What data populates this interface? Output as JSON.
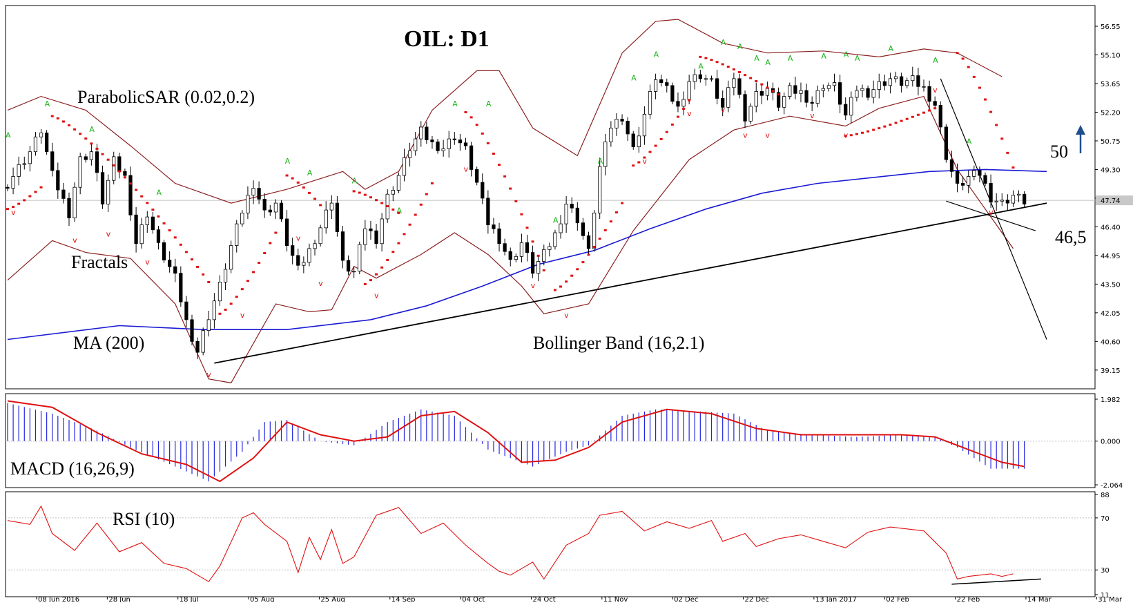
{
  "chart_data": {
    "type": "candlestick",
    "title": "OIL: D1",
    "symbol": "OIL",
    "timeframe": "D1",
    "x_labels": [
      "08 Jun 2016",
      "28 Jun",
      "18 Jul",
      "05 Aug",
      "25 Aug",
      "14 Sep",
      "04 Oct",
      "24 Oct",
      "11 Nov",
      "02 Dec",
      "22 Dec",
      "13 Jan 2017",
      "02 Feb",
      "22 Feb",
      "14 Mar",
      "31 Mar"
    ],
    "price_axis": {
      "ticks": [
        "56.55",
        "55.10",
        "53.65",
        "52.20",
        "50.75",
        "49.30",
        "47.85",
        "46.40",
        "44.95",
        "43.50",
        "42.05",
        "40.60",
        "39.15"
      ],
      "ylim": [
        38.2,
        57.6
      ],
      "current_price": "47.74"
    },
    "indicators": {
      "parabolic_sar": "ParabolicSAR (0.02,0.2)",
      "fractals": "Fractals",
      "ma": "MA (200)",
      "bollinger": "Bollinger Band (16,2.1)"
    },
    "annotations": {
      "target": "50",
      "support": "46,5"
    },
    "close_series": [
      [
        0,
        48.6
      ],
      [
        4,
        50.2
      ],
      [
        6,
        51.3
      ],
      [
        8,
        49.0
      ],
      [
        11,
        47.1
      ],
      [
        13,
        49.8
      ],
      [
        15,
        50.2
      ],
      [
        17,
        47.7
      ],
      [
        19,
        49.7
      ],
      [
        21,
        48.9
      ],
      [
        23,
        45.6
      ],
      [
        25,
        47.1
      ],
      [
        27,
        45.4
      ],
      [
        30,
        43.8
      ],
      [
        32,
        41.6
      ],
      [
        34,
        40.1
      ],
      [
        36,
        41.9
      ],
      [
        38,
        43.4
      ],
      [
        40,
        45.4
      ],
      [
        42,
        47.2
      ],
      [
        44,
        48.6
      ],
      [
        46,
        47.1
      ],
      [
        48,
        47.6
      ],
      [
        50,
        45.6
      ],
      [
        52,
        44.2
      ],
      [
        54,
        45.2
      ],
      [
        56,
        46.4
      ],
      [
        58,
        47.8
      ],
      [
        60,
        44.5
      ],
      [
        62,
        44.1
      ],
      [
        64,
        46.4
      ],
      [
        66,
        45.8
      ],
      [
        68,
        47.9
      ],
      [
        70,
        49.0
      ],
      [
        72,
        50.4
      ],
      [
        74,
        51.2
      ],
      [
        76,
        50.6
      ],
      [
        78,
        50.4
      ],
      [
        80,
        51.0
      ],
      [
        82,
        50.3
      ],
      [
        84,
        48.6
      ],
      [
        86,
        46.6
      ],
      [
        88,
        45.8
      ],
      [
        90,
        44.6
      ],
      [
        92,
        45.6
      ],
      [
        94,
        44.2
      ],
      [
        96,
        45.0
      ],
      [
        98,
        46.0
      ],
      [
        100,
        47.6
      ],
      [
        102,
        46.8
      ],
      [
        104,
        45.1
      ],
      [
        106,
        49.4
      ],
      [
        108,
        51.5
      ],
      [
        110,
        52.0
      ],
      [
        112,
        50.3
      ],
      [
        114,
        52.1
      ],
      [
        116,
        54.0
      ],
      [
        118,
        53.3
      ],
      [
        120,
        52.4
      ],
      [
        122,
        53.8
      ],
      [
        124,
        54.1
      ],
      [
        126,
        53.7
      ],
      [
        128,
        52.4
      ],
      [
        130,
        54.0
      ],
      [
        132,
        52.0
      ],
      [
        134,
        53.1
      ],
      [
        136,
        53.4
      ],
      [
        138,
        52.6
      ],
      [
        140,
        53.3
      ],
      [
        142,
        53.2
      ],
      [
        144,
        52.7
      ],
      [
        146,
        53.6
      ],
      [
        148,
        53.5
      ],
      [
        150,
        52.0
      ],
      [
        152,
        53.4
      ],
      [
        154,
        53.2
      ],
      [
        156,
        53.6
      ],
      [
        158,
        53.9
      ],
      [
        160,
        53.7
      ],
      [
        162,
        53.8
      ],
      [
        164,
        53.4
      ],
      [
        166,
        52.6
      ],
      [
        168,
        50.0
      ],
      [
        170,
        48.4
      ],
      [
        172,
        48.9
      ],
      [
        174,
        49.1
      ],
      [
        176,
        47.9
      ],
      [
        178,
        47.6
      ],
      [
        180,
        48.0
      ],
      [
        182,
        47.7
      ]
    ],
    "ma200": [
      [
        0,
        40.7
      ],
      [
        20,
        41.4
      ],
      [
        35,
        41.2
      ],
      [
        50,
        41.2
      ],
      [
        65,
        41.7
      ],
      [
        75,
        42.4
      ],
      [
        85,
        43.4
      ],
      [
        95,
        44.5
      ],
      [
        105,
        45.2
      ],
      [
        115,
        46.3
      ],
      [
        125,
        47.3
      ],
      [
        135,
        48.1
      ],
      [
        145,
        48.6
      ],
      [
        155,
        48.9
      ],
      [
        165,
        49.2
      ],
      [
        175,
        49.3
      ],
      [
        186,
        49.2
      ]
    ],
    "bollinger_upper": [
      [
        0,
        52.3
      ],
      [
        6,
        53.0
      ],
      [
        14,
        52.3
      ],
      [
        22,
        50.5
      ],
      [
        30,
        48.6
      ],
      [
        40,
        47.6
      ],
      [
        50,
        48.3
      ],
      [
        60,
        49.2
      ],
      [
        64,
        48.3
      ],
      [
        70,
        49.2
      ],
      [
        76,
        52.3
      ],
      [
        84,
        54.3
      ],
      [
        88,
        54.3
      ],
      [
        94,
        51.4
      ],
      [
        102,
        50.0
      ],
      [
        110,
        55.2
      ],
      [
        116,
        56.8
      ],
      [
        120,
        56.9
      ],
      [
        128,
        55.7
      ],
      [
        136,
        55.2
      ],
      [
        146,
        55.3
      ],
      [
        156,
        55.0
      ],
      [
        164,
        55.4
      ],
      [
        170,
        55.2
      ],
      [
        178,
        54.0
      ]
    ],
    "bollinger_lower": [
      [
        0,
        43.7
      ],
      [
        8,
        45.7
      ],
      [
        14,
        45.1
      ],
      [
        22,
        44.8
      ],
      [
        30,
        42.5
      ],
      [
        36,
        38.7
      ],
      [
        40,
        38.5
      ],
      [
        48,
        42.5
      ],
      [
        54,
        42.1
      ],
      [
        58,
        42.2
      ],
      [
        62,
        44.4
      ],
      [
        66,
        43.8
      ],
      [
        74,
        45.0
      ],
      [
        80,
        46.1
      ],
      [
        86,
        45.0
      ],
      [
        92,
        43.4
      ],
      [
        96,
        42.0
      ],
      [
        104,
        42.5
      ],
      [
        112,
        46.2
      ],
      [
        122,
        49.8
      ],
      [
        130,
        51.3
      ],
      [
        140,
        52.0
      ],
      [
        150,
        51.5
      ],
      [
        156,
        52.4
      ],
      [
        164,
        53.0
      ],
      [
        170,
        49.3
      ],
      [
        176,
        46.9
      ],
      [
        180,
        45.3
      ]
    ],
    "trendlines": [
      {
        "name": "support-trend",
        "points": [
          [
            37,
            39.5
          ],
          [
            186,
            47.6
          ]
        ]
      },
      {
        "name": "channel-low",
        "points": [
          [
            168,
            47.7
          ],
          [
            184,
            46.2
          ]
        ]
      },
      {
        "name": "down-trend",
        "points": [
          [
            167,
            53.9
          ],
          [
            186,
            40.7
          ]
        ]
      }
    ],
    "sar_up_segments": [
      [
        [
          0,
          47.3
        ],
        [
          6,
          48.4
        ]
      ],
      [
        [
          38,
          42.0
        ],
        [
          48,
          46.1
        ]
      ],
      [
        [
          64,
          43.5
        ],
        [
          76,
          48.6
        ]
      ],
      [
        [
          98,
          43.2
        ],
        [
          110,
          47.6
        ]
      ],
      [
        [
          112,
          49.5
        ],
        [
          122,
          52.8
        ]
      ],
      [
        [
          150,
          51.0
        ],
        [
          166,
          52.4
        ]
      ]
    ],
    "sar_down_segments": [
      [
        [
          8,
          52.0
        ],
        [
          36,
          43.6
        ]
      ],
      [
        [
          50,
          49.0
        ],
        [
          56,
          47.5
        ]
      ],
      [
        [
          62,
          48.2
        ],
        [
          70,
          47.1
        ]
      ],
      [
        [
          82,
          52.2
        ],
        [
          96,
          44.2
        ]
      ],
      [
        [
          124,
          55.0
        ],
        [
          138,
          53.1
        ]
      ],
      [
        [
          170,
          55.2
        ],
        [
          180,
          49.4
        ]
      ]
    ],
    "fractals_up": [
      [
        0,
        50.9
      ],
      [
        7,
        52.5
      ],
      [
        15,
        51.2
      ],
      [
        27,
        48.0
      ],
      [
        50,
        49.6
      ],
      [
        54,
        49.0
      ],
      [
        62,
        48.6
      ],
      [
        70,
        47.1
      ],
      [
        80,
        52.5
      ],
      [
        86,
        52.5
      ],
      [
        98,
        46.6
      ],
      [
        106,
        49.6
      ],
      [
        112,
        53.8
      ],
      [
        116,
        55.0
      ],
      [
        124,
        54.4
      ],
      [
        128,
        55.6
      ],
      [
        131,
        55.4
      ],
      [
        134,
        54.8
      ],
      [
        136,
        54.6
      ],
      [
        140,
        54.8
      ],
      [
        146,
        54.9
      ],
      [
        150,
        55.0
      ],
      [
        152,
        54.8
      ],
      [
        158,
        55.3
      ],
      [
        166,
        54.7
      ],
      [
        172,
        50.6
      ]
    ],
    "fractals_down": [
      [
        1,
        47.0
      ],
      [
        12,
        45.6
      ],
      [
        18,
        45.9
      ],
      [
        25,
        44.5
      ],
      [
        36,
        38.8
      ],
      [
        42,
        41.8
      ],
      [
        52,
        45.7
      ],
      [
        56,
        43.4
      ],
      [
        66,
        42.8
      ],
      [
        82,
        49.2
      ],
      [
        94,
        43.3
      ],
      [
        100,
        41.8
      ],
      [
        114,
        49.6
      ],
      [
        122,
        52.0
      ],
      [
        128,
        52.2
      ],
      [
        132,
        50.9
      ],
      [
        136,
        50.9
      ],
      [
        144,
        51.9
      ],
      [
        150,
        50.9
      ],
      [
        166,
        53.2
      ],
      [
        176,
        47.0
      ]
    ],
    "macd_panel": {
      "label": "MACD (16,26,9)",
      "ticks": [
        "1.982",
        "0.000",
        "-2.064"
      ],
      "ylim": [
        -2.064,
        1.982
      ],
      "histogram": [
        [
          0,
          1.8
        ],
        [
          8,
          1.3
        ],
        [
          16,
          0.5
        ],
        [
          22,
          -0.3
        ],
        [
          30,
          -1.2
        ],
        [
          36,
          -1.9
        ],
        [
          42,
          -0.5
        ],
        [
          46,
          0.9
        ],
        [
          50,
          1.0
        ],
        [
          56,
          0.0
        ],
        [
          62,
          -0.2
        ],
        [
          68,
          0.9
        ],
        [
          74,
          1.5
        ],
        [
          80,
          1.2
        ],
        [
          86,
          -0.4
        ],
        [
          94,
          -1.2
        ],
        [
          100,
          -0.5
        ],
        [
          104,
          -0.2
        ],
        [
          110,
          1.2
        ],
        [
          116,
          1.5
        ],
        [
          124,
          1.4
        ],
        [
          130,
          1.3
        ],
        [
          136,
          0.5
        ],
        [
          144,
          0.3
        ],
        [
          152,
          0.2
        ],
        [
          160,
          0.3
        ],
        [
          166,
          0.2
        ],
        [
          170,
          -0.3
        ],
        [
          176,
          -1.3
        ],
        [
          182,
          -1.3
        ]
      ],
      "signal": [
        [
          0,
          1.9
        ],
        [
          8,
          1.6
        ],
        [
          16,
          0.4
        ],
        [
          24,
          -0.6
        ],
        [
          32,
          -1.1
        ],
        [
          38,
          -1.9
        ],
        [
          44,
          -0.8
        ],
        [
          50,
          0.9
        ],
        [
          56,
          0.3
        ],
        [
          62,
          0.0
        ],
        [
          68,
          0.2
        ],
        [
          74,
          1.2
        ],
        [
          80,
          1.4
        ],
        [
          86,
          0.4
        ],
        [
          92,
          -1.0
        ],
        [
          98,
          -0.9
        ],
        [
          104,
          -0.3
        ],
        [
          110,
          0.9
        ],
        [
          118,
          1.5
        ],
        [
          126,
          1.3
        ],
        [
          134,
          0.6
        ],
        [
          142,
          0.3
        ],
        [
          152,
          0.3
        ],
        [
          160,
          0.3
        ],
        [
          166,
          0.2
        ],
        [
          172,
          -0.4
        ],
        [
          178,
          -1.0
        ],
        [
          182,
          -1.2
        ]
      ]
    },
    "rsi_panel": {
      "label": "RSI (10)",
      "ticks": [
        "88",
        "70",
        "30",
        "11"
      ],
      "ylim": [
        11,
        88
      ],
      "levels": [
        70,
        30
      ],
      "values": [
        [
          0,
          68
        ],
        [
          4,
          65
        ],
        [
          6,
          79
        ],
        [
          8,
          58
        ],
        [
          12,
          45
        ],
        [
          16,
          66
        ],
        [
          20,
          44
        ],
        [
          24,
          51
        ],
        [
          28,
          35
        ],
        [
          32,
          31
        ],
        [
          36,
          21
        ],
        [
          38,
          33
        ],
        [
          42,
          70
        ],
        [
          44,
          74
        ],
        [
          46,
          65
        ],
        [
          50,
          52
        ],
        [
          52,
          28
        ],
        [
          54,
          55
        ],
        [
          56,
          38
        ],
        [
          58,
          61
        ],
        [
          60,
          35
        ],
        [
          62,
          40
        ],
        [
          64,
          56
        ],
        [
          66,
          72
        ],
        [
          70,
          78
        ],
        [
          74,
          58
        ],
        [
          78,
          66
        ],
        [
          82,
          49
        ],
        [
          86,
          35
        ],
        [
          88,
          29
        ],
        [
          90,
          26
        ],
        [
          94,
          36
        ],
        [
          96,
          23
        ],
        [
          100,
          49
        ],
        [
          104,
          58
        ],
        [
          106,
          72
        ],
        [
          110,
          75
        ],
        [
          114,
          60
        ],
        [
          118,
          67
        ],
        [
          122,
          62
        ],
        [
          126,
          68
        ],
        [
          128,
          52
        ],
        [
          132,
          58
        ],
        [
          134,
          48
        ],
        [
          138,
          54
        ],
        [
          142,
          57
        ],
        [
          146,
          52
        ],
        [
          150,
          47
        ],
        [
          154,
          59
        ],
        [
          158,
          63
        ],
        [
          164,
          60
        ],
        [
          168,
          43
        ],
        [
          170,
          23
        ],
        [
          172,
          25
        ],
        [
          176,
          27
        ],
        [
          178,
          25
        ],
        [
          180,
          27
        ]
      ],
      "trendline": [
        [
          169,
          19
        ],
        [
          185,
          23
        ]
      ]
    }
  }
}
